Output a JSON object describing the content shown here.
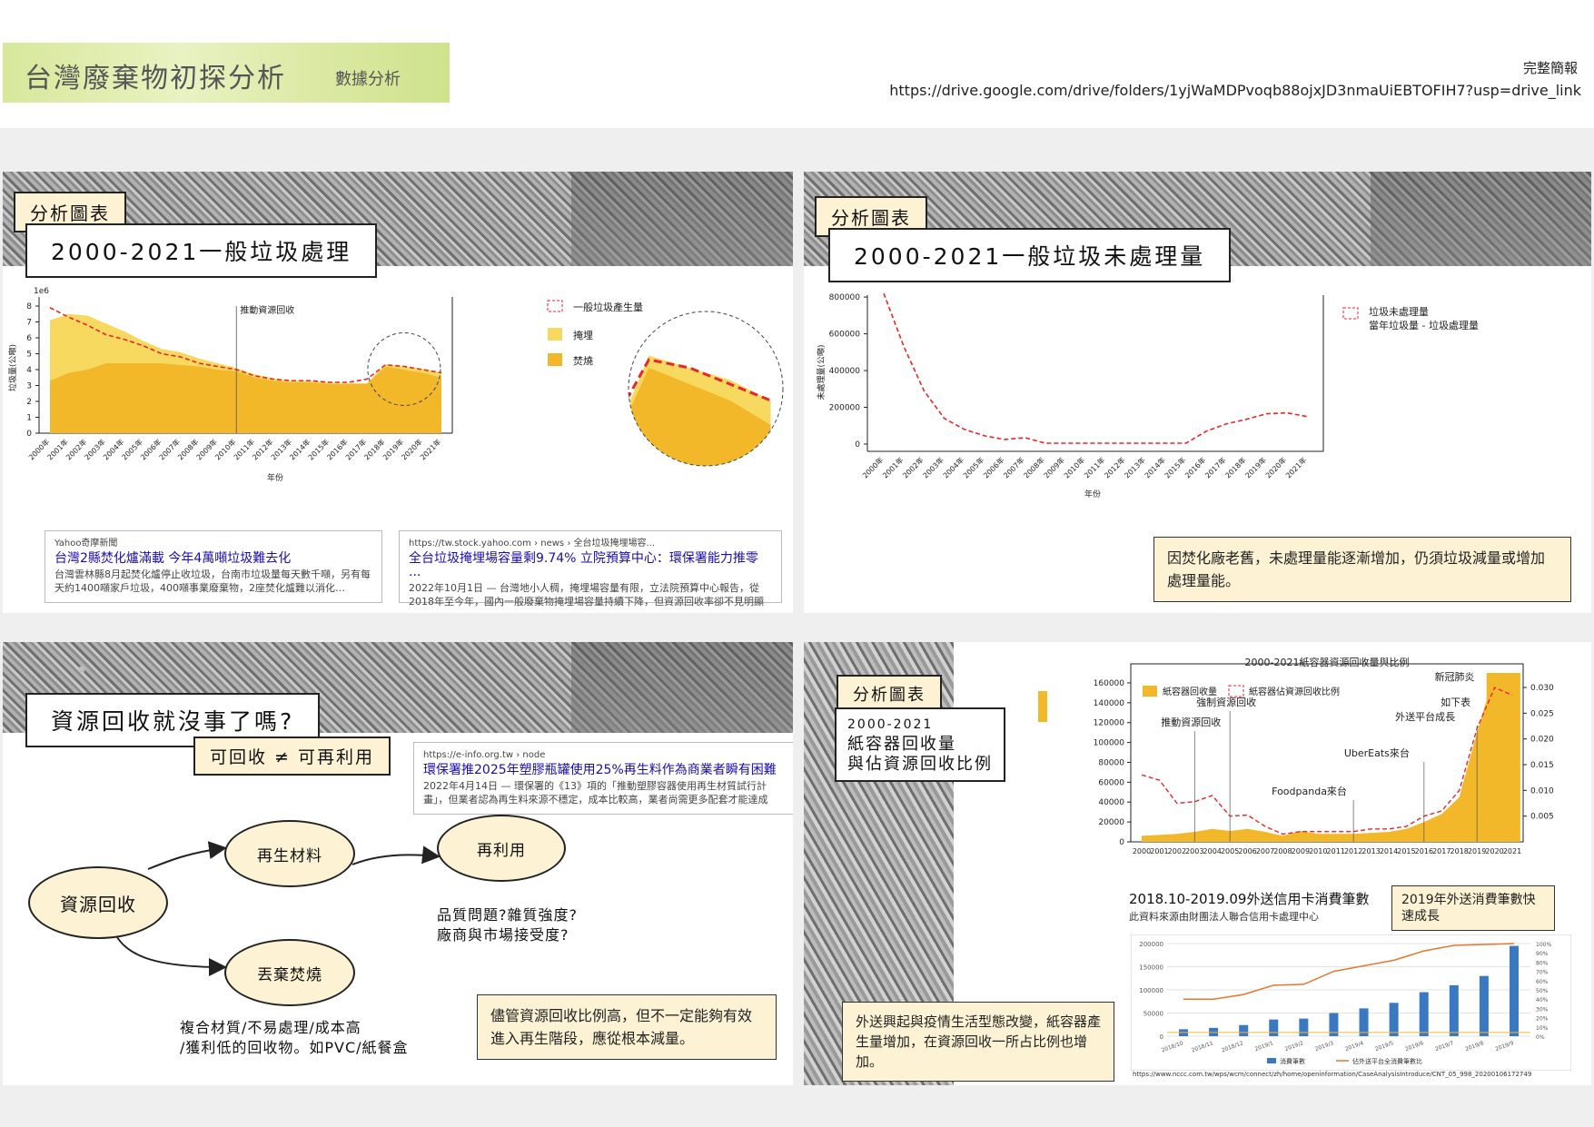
{
  "header": {
    "title": "台灣廢棄物初探分析",
    "subtitle": "數據分析",
    "full_brief_label": "完整簡報",
    "full_brief_link": "https://drive.google.com/drive/folders/1yjWaMDPvoqb88ojxJD3nmaUiEBTOFIH7?usp=drive_link"
  },
  "panel1": {
    "tag": "分析圖表",
    "title": "2000-2021一般垃圾處理",
    "snippet1": {
      "source": "Yahoo奇摩新聞",
      "headline": "台灣2縣焚化爐滿載 今年4萬噸垃圾難去化",
      "body": "台灣雲林縣8月起焚化爐停止收垃圾，台南市垃圾量每天數千噸，另有每天約1400噸家戶垃圾，400噸事業廢棄物，2座焚化爐難以消化…"
    },
    "snippet2": {
      "url": "https://tw.stock.yahoo.com › news › 全台垃圾掩埋場容...",
      "headline": "全台垃圾掩埋場容量剩9.74% 立院預算中心：環保署能力推零 ...",
      "body": "2022年10月1日 — 台灣地小人稠，掩埋場容量有限，立法院預算中心報告，從2018年至今年，國內一般廢棄物掩埋場容量持續下降，但資源回收率卻不見明顯提升…"
    }
  },
  "panel2": {
    "tag": "分析圖表",
    "title": "2000-2021一般垃圾未處理量",
    "note": "因焚化廠老舊，未處理量能逐漸增加，仍須垃圾減量或增加處理量能。"
  },
  "panel3": {
    "title": "資源回收就沒事了嗎?",
    "subtag": "可回收 ≠ 可再利用",
    "snippet": {
      "url": "https://e-info.org.tw › node",
      "headline": "環保署推2025年塑膠瓶罐使用25%再生料作為商業者瞬有困難",
      "body": "2022年4月14日 — 環保署的《13》項的「推動塑膠容器使用再生材質試行計畫」，但業者認為再生料來源不穩定，成本比較高，業者尚需更多配套才能達成2025年目標…"
    },
    "node_source": "資源回收",
    "node_recycled": "再生材料",
    "node_reuse": "再利用",
    "node_burn": "丟棄焚燒",
    "text_quality_1": "品質問題?雜質強度?",
    "text_quality_2": "廠商與市場接受度?",
    "text_burn_1": "複合材質/不易處理/成本高",
    "text_burn_2": "/獲利低的回收物。如PVC/紙餐盒",
    "note": "儘管資源回收比例高，但不一定能夠有效進入再生階段，應從根本減量。"
  },
  "panel4": {
    "tag": "分析圖表",
    "title_line1": "2000-2021",
    "title_line2": "紙容器回收量",
    "title_line3": "與佔資源回收比例",
    "note": "外送興起與疫情生活型態改變，紙容器產生量增加，在資源回收一所占比例也增加。",
    "note2": "2019年外送消費筆數快速成長",
    "credit_title": "2018.10-2019.09外送信用卡消費筆數",
    "credit_subtitle": "此資料來源由財團法人聯合信用卡處理中心",
    "credit_source": "https://www.nccc.com.tw/wps/wcm/connect/zh/home/openinformation/CaseAnalysisIntroduce/CNT_05_998_20200106172749"
  },
  "chart_data": [
    {
      "type": "area",
      "title": "",
      "y_scale_label": "1e6",
      "xlabel": "年份",
      "ylabel": "垃圾量(公噸)",
      "ylim": [
        0,
        8
      ],
      "yticks": [
        0,
        1,
        2,
        3,
        4,
        5,
        6,
        7,
        8
      ],
      "categories": [
        "2000年",
        "2001年",
        "2002年",
        "2003年",
        "2004年",
        "2005年",
        "2006年",
        "2007年",
        "2008年",
        "2009年",
        "2010年",
        "2011年",
        "2012年",
        "2013年",
        "2014年",
        "2015年",
        "2016年",
        "2017年",
        "2018年",
        "2019年",
        "2020年",
        "2021年"
      ],
      "series": [
        {
          "name": "一般垃圾產生量",
          "style": "dashed-line",
          "color": "#e8262b",
          "values": [
            7.9,
            7.3,
            6.8,
            6.2,
            5.9,
            5.5,
            5.0,
            4.8,
            4.4,
            4.2,
            4.0,
            3.6,
            3.4,
            3.3,
            3.3,
            3.2,
            3.2,
            3.4,
            4.3,
            4.2,
            4.0,
            3.8
          ]
        },
        {
          "name": "掩埋",
          "color": "#f6d95e",
          "values": [
            3.8,
            3.7,
            3.4,
            2.5,
            2.0,
            1.4,
            0.9,
            0.8,
            0.5,
            0.4,
            0.2,
            0.2,
            0.15,
            0.1,
            0.1,
            0.1,
            0.05,
            0.05,
            0.15,
            0.2,
            0.25,
            0.3
          ]
        },
        {
          "name": "焚燒",
          "color": "#f3b72a",
          "values": [
            3.3,
            3.8,
            4.0,
            4.4,
            4.4,
            4.4,
            4.4,
            4.3,
            4.2,
            4.0,
            3.9,
            3.5,
            3.3,
            3.2,
            3.2,
            3.1,
            3.1,
            3.1,
            4.2,
            4.0,
            3.8,
            3.5
          ]
        }
      ],
      "annotations": [
        {
          "x": "2010年",
          "text": "推動資源回收"
        }
      ],
      "legend": "right"
    },
    {
      "type": "line",
      "title": "",
      "xlabel": "年份",
      "ylabel": "未處理量(公噸)",
      "ylim": [
        0,
        850000
      ],
      "yticks": [
        0,
        200000,
        400000,
        600000,
        800000
      ],
      "categories": [
        "2000年",
        "2001年",
        "2002年",
        "2003年",
        "2004年",
        "2005年",
        "2006年",
        "2007年",
        "2008年",
        "2009年",
        "2010年",
        "2011年",
        "2012年",
        "2013年",
        "2014年",
        "2015年",
        "2016年",
        "2017年",
        "2018年",
        "2019年",
        "2020年",
        "2021年"
      ],
      "series": [
        {
          "name": "垃圾未處理量",
          "color": "#e8262b",
          "values": [
            820000,
            530000,
            290000,
            140000,
            80000,
            45000,
            25000,
            35000,
            5000,
            5000,
            5000,
            5000,
            5000,
            5000,
            5000,
            5000,
            70000,
            110000,
            135000,
            165000,
            170000,
            150000
          ]
        }
      ],
      "legend_lines": [
        "垃圾未處理量",
        "當年垃圾量 - 垃圾處理量"
      ],
      "legend": "top-right"
    },
    {
      "type": "bar",
      "title": "2000-2021紙容器資源回收量與比例",
      "categories": [
        "2000",
        "2001",
        "2002",
        "2003",
        "2004",
        "2005",
        "2006",
        "2007",
        "2008",
        "2009",
        "2010",
        "2011",
        "2012",
        "2013",
        "2014",
        "2015",
        "2016",
        "2017",
        "2018",
        "2019",
        "2020",
        "2021"
      ],
      "ylim": [
        0,
        170000
      ],
      "yticks": [
        0,
        20000,
        40000,
        60000,
        80000,
        100000,
        120000,
        140000,
        160000
      ],
      "y2lim": [
        0,
        0.03
      ],
      "y2ticks": [
        0.005,
        0.01,
        0.015,
        0.02,
        0.025,
        0.03
      ],
      "series": [
        {
          "name": "紙容器回收量",
          "axis": "left",
          "color": "#f3b72a",
          "values": [
            6000,
            7000,
            8000,
            10000,
            13000,
            11000,
            13000,
            10000,
            6000,
            11000,
            8000,
            8000,
            8000,
            9000,
            10000,
            13000,
            20000,
            28000,
            45000,
            110000,
            170000,
            170000
          ]
        },
        {
          "name": "紙容器佔資源回收比例",
          "axis": "right",
          "color": "#e8262b",
          "values": [
            0.013,
            0.012,
            0.0075,
            0.0078,
            0.009,
            0.005,
            0.0052,
            0.003,
            0.0015,
            0.002,
            0.002,
            0.002,
            0.002,
            0.0025,
            0.0025,
            0.003,
            0.005,
            0.006,
            0.01,
            0.022,
            0.03,
            0.0285
          ]
        }
      ],
      "annotations": [
        {
          "x": "2003",
          "text": "推動資源回收"
        },
        {
          "x": "2005",
          "text": "強制資源回收"
        },
        {
          "x": "2012",
          "text": "Foodpanda來台"
        },
        {
          "x": "2016",
          "text": "UberEats來台"
        },
        {
          "x": "2019",
          "text": "外送平台成長"
        },
        {
          "x": "2019",
          "text": "如下表"
        },
        {
          "x": "2020",
          "text": "新冠肺炎"
        }
      ],
      "legend": "top"
    },
    {
      "type": "bar",
      "title": "",
      "categories": [
        "2018/10",
        "2018/11",
        "2018/12",
        "2019/1",
        "2019/2",
        "2019/3",
        "2019/4",
        "2019/5",
        "2019/6",
        "2019/7",
        "2019/8",
        "2019/9"
      ],
      "ylim": [
        0,
        200000
      ],
      "yticks": [
        0,
        50000,
        100000,
        150000,
        200000
      ],
      "y2ticks": [
        "0%",
        "10%",
        "20%",
        "30%",
        "40%",
        "50%",
        "60%",
        "70%",
        "80%",
        "90%",
        "100%"
      ],
      "series": [
        {
          "name": "消費筆數",
          "color": "#3a78c2",
          "values": [
            15000,
            18000,
            24000,
            36000,
            38000,
            50000,
            60000,
            72000,
            95000,
            110000,
            130000,
            195000
          ]
        },
        {
          "name": "佔外送平台全消費筆數比",
          "color": "#e8762b",
          "values": [
            0.4,
            0.4,
            0.45,
            0.55,
            0.56,
            0.7,
            0.76,
            0.82,
            0.92,
            0.98,
            0.99,
            1.0
          ]
        }
      ],
      "legend": "bottom"
    }
  ]
}
